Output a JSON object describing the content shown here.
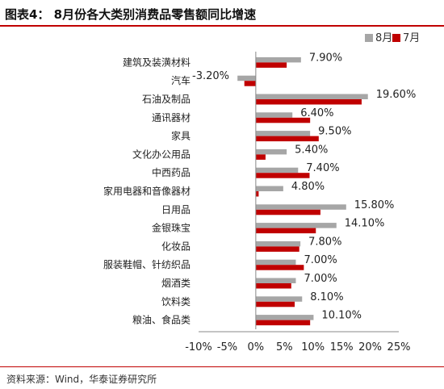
{
  "title": "图表4：  8月份各大类别消费品零售额同比增速",
  "source": "资料来源：Wind，华泰证券研究所",
  "colors": {
    "aug": "#a6a6a6",
    "jul": "#c00000",
    "accent": "#c00000"
  },
  "chart_data": {
    "type": "bar",
    "orientation": "horizontal",
    "categories": [
      "建筑及装潢材料",
      "汽车",
      "石油及制品",
      "通讯器材",
      "家具",
      "文化办公用品",
      "中西药品",
      "家用电器和音像器材",
      "日用品",
      "金银珠宝",
      "化妆品",
      "服装鞋帽、针纺织品",
      "烟酒类",
      "饮料类",
      "粮油、食品类"
    ],
    "series": [
      {
        "name": "8月",
        "values": [
          7.9,
          -3.2,
          19.6,
          6.4,
          9.5,
          5.4,
          7.4,
          4.8,
          15.8,
          14.1,
          7.8,
          7.0,
          7.0,
          8.1,
          10.1
        ]
      },
      {
        "name": "7月",
        "values": [
          5.4,
          -2.0,
          18.5,
          9.5,
          11.0,
          1.7,
          9.4,
          0.5,
          11.3,
          10.5,
          7.6,
          8.4,
          6.2,
          6.8,
          9.5
        ]
      }
    ],
    "data_labels": [
      "7.90%",
      "-3.20%",
      "19.60%",
      "6.40%",
      "9.50%",
      "5.40%",
      "7.40%",
      "4.80%",
      "15.80%",
      "14.10%",
      "7.80%",
      "7.00%",
      "7.00%",
      "8.10%",
      "10.10%"
    ],
    "xlim": [
      -10,
      25
    ],
    "xticks": [
      "-10%",
      "-5%",
      "0%",
      "5%",
      "10%",
      "15%",
      "20%",
      "25%"
    ],
    "legend": {
      "position": "top-right"
    },
    "grid": false
  }
}
